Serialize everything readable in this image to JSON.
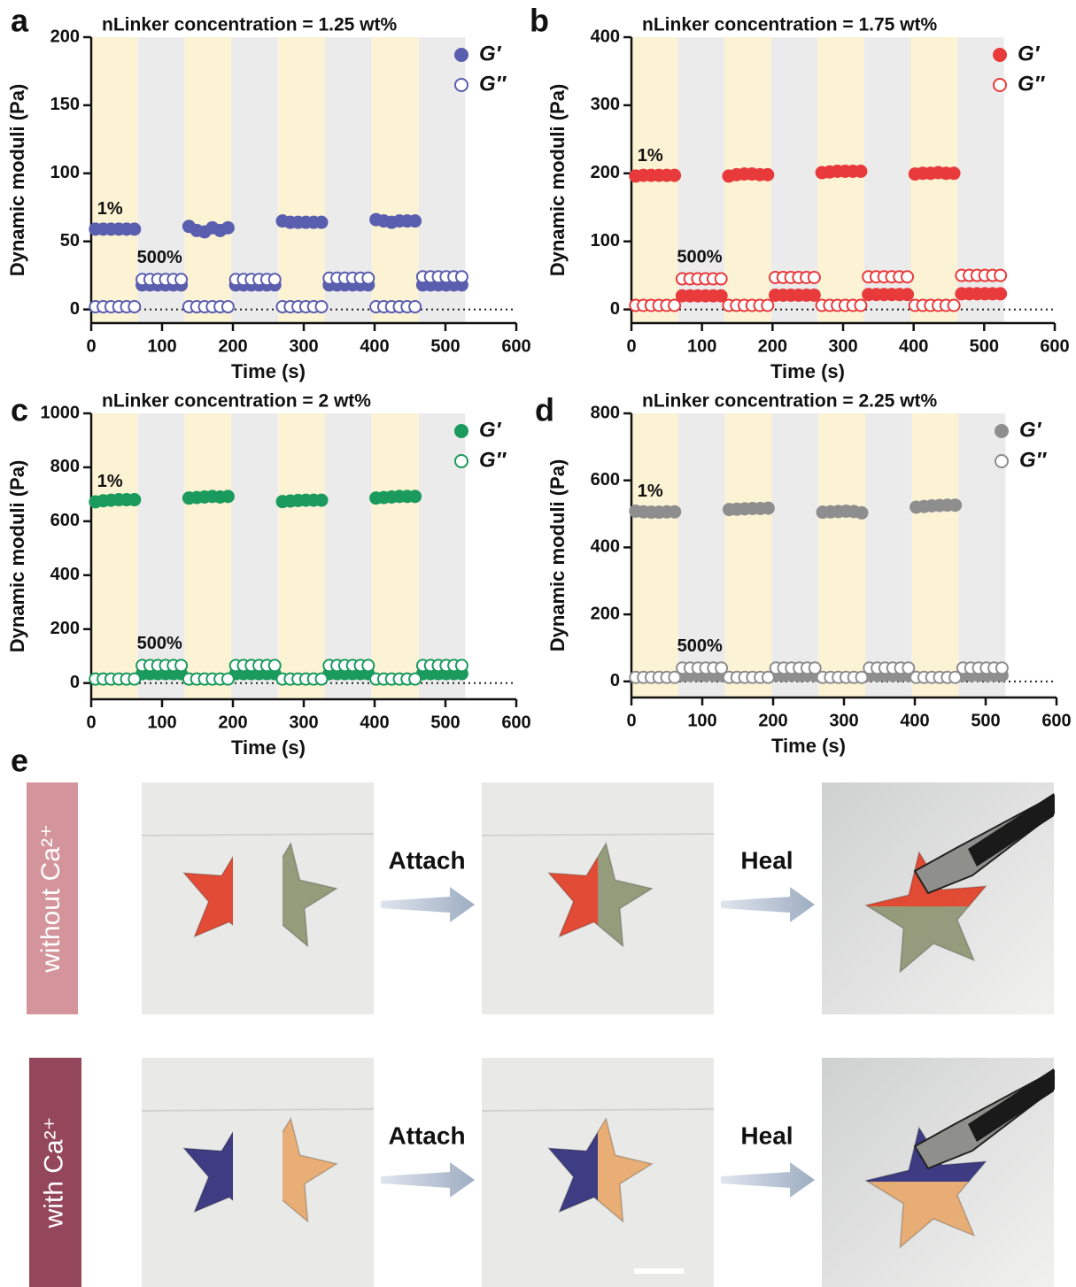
{
  "panel_labels": [
    "a",
    "b",
    "c",
    "d",
    "e"
  ],
  "chart_data": [
    {
      "type": "scatter",
      "title": "nLinker concentration = 1.25 wt%",
      "x_label": "Time (s)",
      "y_label": "Dynamic moduli (Pa)",
      "annotations": [
        "1%",
        "500%"
      ],
      "xlim": [
        0,
        600
      ],
      "xticks": [
        0,
        100,
        200,
        300,
        400,
        500,
        600
      ],
      "ylim": [
        -10,
        200
      ],
      "yticks": [
        0,
        50,
        100,
        150,
        200
      ],
      "zero_line": true,
      "legend": "upper right",
      "strain_edges": [
        0,
        66,
        132,
        198,
        264,
        330,
        396,
        462,
        528
      ],
      "band_colors": [
        "#fcf2d4",
        "#ebebeb"
      ],
      "x": [
        6,
        17,
        28,
        39,
        50,
        61,
        72,
        83,
        94,
        105,
        116,
        127,
        138,
        149,
        160,
        171,
        182,
        193,
        204,
        215,
        226,
        237,
        248,
        259,
        270,
        281,
        292,
        303,
        314,
        325,
        336,
        347,
        358,
        369,
        380,
        391,
        402,
        413,
        424,
        435,
        446,
        457,
        468,
        479,
        490,
        501,
        512,
        523
      ],
      "series": [
        {
          "name": "G′",
          "color": "#5a5eae",
          "filled": true,
          "values": [
            59,
            59,
            59,
            59,
            59,
            59,
            18,
            18,
            18,
            18,
            18,
            18,
            61,
            58,
            57,
            60,
            58,
            60,
            18,
            18,
            18,
            18,
            18,
            18,
            65,
            64,
            64,
            64,
            64,
            64,
            18,
            18,
            18,
            18,
            18,
            18,
            66,
            65,
            64,
            65,
            65,
            65,
            18,
            18,
            18,
            18,
            18,
            18
          ]
        },
        {
          "name": "G″",
          "color": "#5a5eae",
          "filled": false,
          "values": [
            2,
            2,
            2,
            2,
            2,
            2,
            22,
            22,
            22,
            22,
            22,
            22,
            2,
            2,
            2,
            2,
            2,
            2,
            22,
            22,
            22,
            22,
            22,
            22,
            2,
            2,
            2,
            2,
            2,
            2,
            23,
            23,
            23,
            23,
            23,
            23,
            2,
            2,
            2,
            2,
            2,
            2,
            24,
            24,
            24,
            24,
            24,
            24
          ]
        }
      ]
    },
    {
      "type": "scatter",
      "title": "nLinker concentration = 1.75 wt%",
      "x_label": "Time (s)",
      "y_label": "Dynamic moduli (Pa)",
      "annotations": [
        "1%",
        "500%"
      ],
      "xlim": [
        0,
        600
      ],
      "xticks": [
        0,
        100,
        200,
        300,
        400,
        500,
        600
      ],
      "ylim": [
        -20,
        400
      ],
      "yticks": [
        0,
        100,
        200,
        300,
        400
      ],
      "zero_line": true,
      "legend": "upper right",
      "strain_edges": [
        0,
        66,
        132,
        198,
        264,
        330,
        396,
        462,
        528
      ],
      "band_colors": [
        "#fcf2d4",
        "#ebebeb"
      ],
      "x": [
        6,
        17,
        28,
        39,
        50,
        61,
        72,
        83,
        94,
        105,
        116,
        127,
        138,
        149,
        160,
        171,
        182,
        193,
        204,
        215,
        226,
        237,
        248,
        259,
        270,
        281,
        292,
        303,
        314,
        325,
        336,
        347,
        358,
        369,
        380,
        391,
        402,
        413,
        424,
        435,
        446,
        457,
        468,
        479,
        490,
        501,
        512,
        523
      ],
      "series": [
        {
          "name": "G′",
          "color": "#e83a3b",
          "filled": true,
          "values": [
            196,
            197,
            197,
            197,
            197,
            197,
            20,
            20,
            20,
            20,
            20,
            20,
            196,
            198,
            199,
            199,
            198,
            198,
            21,
            21,
            21,
            21,
            21,
            21,
            201,
            202,
            203,
            203,
            203,
            203,
            22,
            22,
            22,
            22,
            22,
            22,
            199,
            200,
            200,
            201,
            200,
            200,
            23,
            23,
            23,
            23,
            23,
            23
          ]
        },
        {
          "name": "G″",
          "color": "#e83a3b",
          "filled": false,
          "values": [
            6,
            6,
            6,
            6,
            6,
            6,
            45,
            45,
            45,
            45,
            45,
            45,
            6,
            6,
            6,
            6,
            6,
            6,
            47,
            47,
            47,
            47,
            47,
            47,
            6,
            6,
            6,
            6,
            6,
            6,
            48,
            48,
            48,
            48,
            48,
            48,
            6,
            6,
            6,
            6,
            6,
            6,
            50,
            50,
            50,
            50,
            50,
            50
          ]
        }
      ]
    },
    {
      "type": "scatter",
      "title": "nLinker concentration = 2 wt%",
      "x_label": "Time (s)",
      "y_label": "Dynamic moduli (Pa)",
      "annotations": [
        "1%",
        "500%"
      ],
      "xlim": [
        0,
        600
      ],
      "xticks": [
        0,
        100,
        200,
        300,
        400,
        500,
        600
      ],
      "ylim": [
        -60,
        1000
      ],
      "yticks": [
        0,
        200,
        400,
        600,
        800,
        1000
      ],
      "zero_line": true,
      "legend": "upper right",
      "strain_edges": [
        0,
        66,
        132,
        198,
        264,
        330,
        396,
        462,
        528
      ],
      "band_colors": [
        "#fcf2d4",
        "#ebebeb"
      ],
      "x": [
        6,
        17,
        28,
        39,
        50,
        61,
        72,
        83,
        94,
        105,
        116,
        127,
        138,
        149,
        160,
        171,
        182,
        193,
        204,
        215,
        226,
        237,
        248,
        259,
        270,
        281,
        292,
        303,
        314,
        325,
        336,
        347,
        358,
        369,
        380,
        391,
        402,
        413,
        424,
        435,
        446,
        457,
        468,
        479,
        490,
        501,
        512,
        523
      ],
      "series": [
        {
          "name": "G′",
          "color": "#1b9a5d",
          "filled": true,
          "values": [
            672,
            676,
            678,
            680,
            680,
            680,
            35,
            35,
            35,
            35,
            35,
            35,
            686,
            688,
            690,
            692,
            690,
            692,
            35,
            35,
            35,
            35,
            35,
            35,
            673,
            675,
            677,
            678,
            678,
            678,
            35,
            35,
            35,
            35,
            35,
            35,
            686,
            688,
            690,
            692,
            692,
            692,
            35,
            35,
            35,
            35,
            35,
            35
          ]
        },
        {
          "name": "G″",
          "color": "#1b9a5d",
          "filled": false,
          "values": [
            15,
            15,
            15,
            15,
            15,
            15,
            65,
            65,
            65,
            65,
            65,
            65,
            15,
            15,
            15,
            15,
            15,
            15,
            65,
            65,
            65,
            65,
            65,
            65,
            15,
            15,
            15,
            15,
            15,
            15,
            65,
            65,
            65,
            65,
            65,
            65,
            15,
            15,
            15,
            15,
            15,
            15,
            65,
            65,
            65,
            65,
            65,
            65
          ]
        }
      ]
    },
    {
      "type": "scatter",
      "title": "nLinker concentration = 2.25 wt%",
      "x_label": "Time (s)",
      "y_label": "Dynamic moduli (Pa)",
      "annotations": [
        "1%",
        "500%"
      ],
      "xlim": [
        0,
        600
      ],
      "xticks": [
        0,
        100,
        200,
        300,
        400,
        500,
        600
      ],
      "ylim": [
        -48,
        800
      ],
      "yticks": [
        0,
        200,
        400,
        600,
        800
      ],
      "zero_line": true,
      "legend": "upper right",
      "strain_edges": [
        0,
        66,
        132,
        198,
        264,
        330,
        396,
        462,
        528
      ],
      "band_colors": [
        "#fcf2d4",
        "#ebebeb"
      ],
      "x": [
        6,
        17,
        28,
        39,
        50,
        61,
        72,
        83,
        94,
        105,
        116,
        127,
        138,
        149,
        160,
        171,
        182,
        193,
        204,
        215,
        226,
        237,
        248,
        259,
        270,
        281,
        292,
        303,
        314,
        325,
        336,
        347,
        358,
        369,
        380,
        391,
        402,
        413,
        424,
        435,
        446,
        457,
        468,
        479,
        490,
        501,
        512,
        523
      ],
      "series": [
        {
          "name": "G′",
          "color": "#8e8e8e",
          "filled": true,
          "values": [
            508,
            506,
            505,
            505,
            506,
            506,
            18,
            18,
            18,
            18,
            18,
            18,
            513,
            514,
            515,
            516,
            516,
            517,
            18,
            18,
            18,
            18,
            18,
            18,
            505,
            506,
            507,
            508,
            507,
            503,
            18,
            18,
            18,
            18,
            18,
            18,
            520,
            522,
            524,
            525,
            526,
            526,
            18,
            18,
            18,
            18,
            18,
            18
          ]
        },
        {
          "name": "G″",
          "color": "#8e8e8e",
          "filled": false,
          "values": [
            12,
            12,
            12,
            12,
            12,
            12,
            40,
            40,
            40,
            40,
            40,
            40,
            12,
            12,
            12,
            12,
            12,
            12,
            40,
            40,
            40,
            40,
            40,
            40,
            12,
            12,
            12,
            12,
            12,
            12,
            40,
            40,
            40,
            40,
            40,
            40,
            12,
            12,
            12,
            12,
            12,
            12,
            40,
            40,
            40,
            40,
            40,
            40
          ]
        }
      ]
    }
  ],
  "photos": {
    "rows": [
      {
        "label": "without Ca²⁺",
        "steps": [
          "Attach",
          "Heal"
        ]
      },
      {
        "label": "with Ca²⁺",
        "steps": [
          "Attach",
          "Heal"
        ]
      }
    ]
  }
}
